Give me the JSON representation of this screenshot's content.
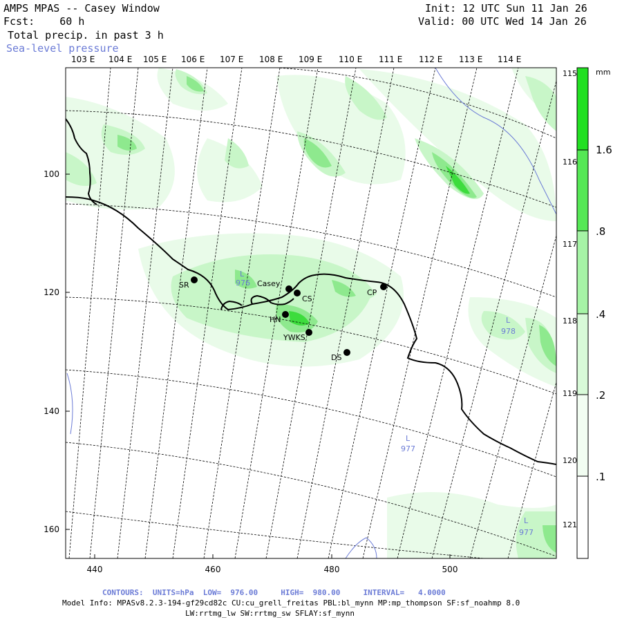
{
  "header": {
    "title": "AMPS MPAS -- Casey Window",
    "forecast": "Fcst:    60 h",
    "field": "Total precip. in past 3 h",
    "overlay": "Sea-level pressure",
    "init": "Init: 12 UTC Sun 11 Jan 26",
    "valid": "Valid: 00 UTC Wed 14 Jan 26"
  },
  "map": {
    "longitude_labels": [
      "103 E",
      "104 E",
      "105 E",
      "106 E",
      "107 E",
      "108 E",
      "109 E",
      "110 E",
      "111 E",
      "112 E",
      "113 E",
      "114 E"
    ],
    "right_longitude_labels": [
      "115 E",
      "116 E",
      "117 E",
      "118 E",
      "119 E",
      "120 E",
      "121 E"
    ],
    "x_ticks": [
      "440",
      "460",
      "480",
      "500"
    ],
    "y_ticks": [
      "100",
      "120",
      "140",
      "160"
    ],
    "stations": [
      {
        "label": "SR",
        "name": "sr"
      },
      {
        "label": "Casey",
        "name": "casey"
      },
      {
        "label": "CS",
        "name": "cs"
      },
      {
        "label": "HN",
        "name": "hn"
      },
      {
        "label": "YWKS",
        "name": "ywks"
      },
      {
        "label": "CP",
        "name": "cp"
      },
      {
        "label": "DS",
        "name": "ds"
      }
    ],
    "pressure_lows": [
      {
        "symbol": "L",
        "value": "976"
      },
      {
        "symbol": "L",
        "value": "978"
      },
      {
        "symbol": "L",
        "value": "977"
      },
      {
        "symbol": "L",
        "value": "977"
      }
    ]
  },
  "colorbar": {
    "unit": "mm",
    "labels": [
      "1.6",
      ".8",
      ".4",
      ".2",
      ".1"
    ],
    "colors": [
      "#22e022",
      "#55e855",
      "#a6f4a6",
      "#d8fad8",
      "#f2fdf2",
      "#ffffff"
    ]
  },
  "footer": {
    "contours": "CONTOURS:  UNITS=hPa  LOW=  976.00     HIGH=  980.00     INTERVAL=   4.0000",
    "model_info": "Model Info: MPASv8.2.3-194-gf29cd82c CU:cu_grell_freitas PBL:bl_mynn MP:mp_thompson SF:sf_noahmp 8.0",
    "physics": "LW:rrtmg_lw SW:rrtmg_sw SFLAY:sf_mynn"
  },
  "colors": {
    "pressure": "#6b7bd6",
    "coast": "#000000",
    "grid": "#000000"
  }
}
